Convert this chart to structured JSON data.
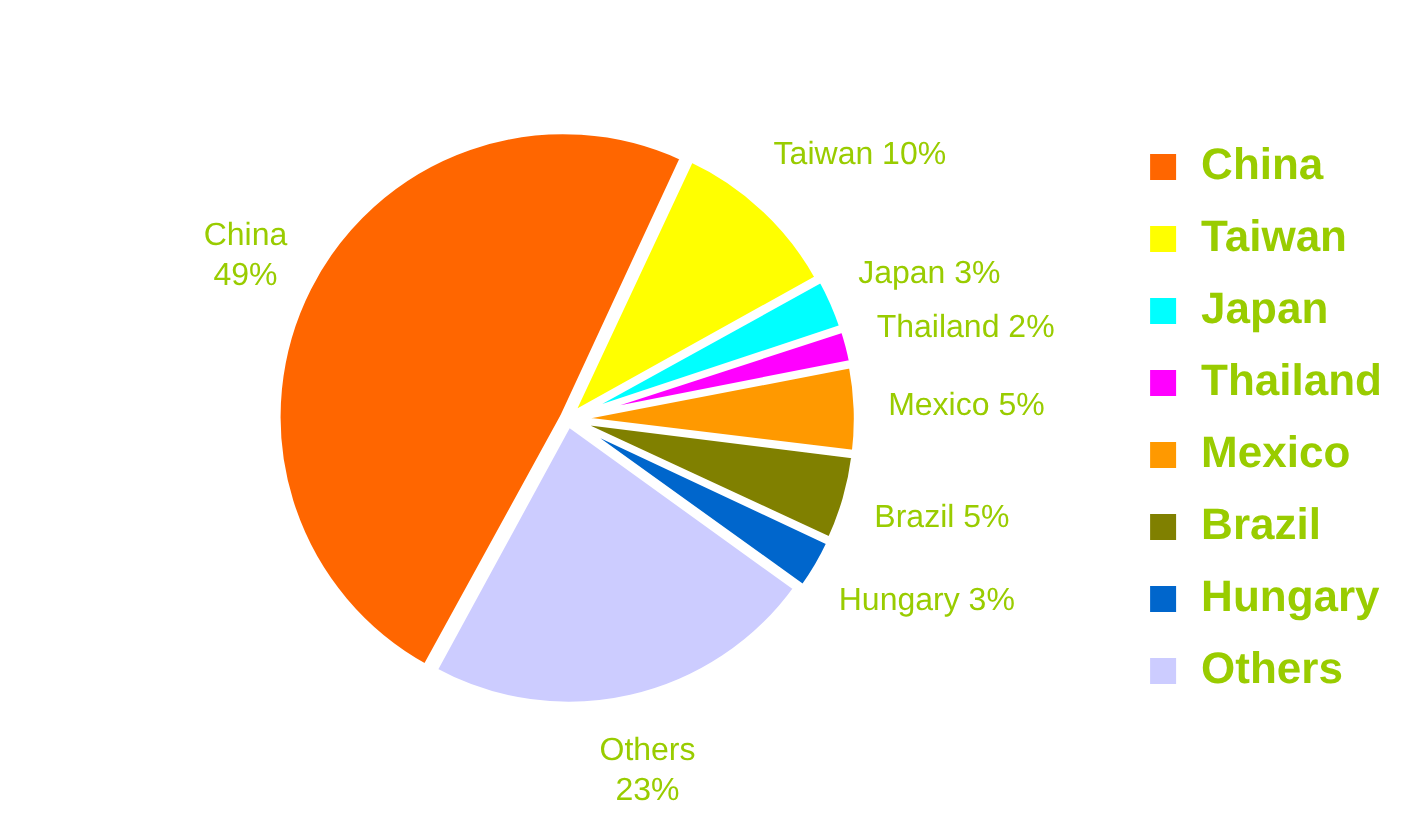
{
  "chart_data": {
    "type": "pie",
    "categories": [
      "China",
      "Taiwan",
      "Japan",
      "Thailand",
      "Mexico",
      "Brazil",
      "Hungary",
      "Others"
    ],
    "values": [
      49,
      10,
      3,
      2,
      5,
      5,
      3,
      23
    ],
    "colors": [
      "#ff6600",
      "#ffff00",
      "#00ffff",
      "#ff00ff",
      "#ff9900",
      "#808000",
      "#0066cc",
      "#ccccff"
    ],
    "value_labels": [
      "49%",
      "10%",
      "3%",
      "2%",
      "5%",
      "5%",
      "3%",
      "23%"
    ],
    "legend": "right"
  }
}
